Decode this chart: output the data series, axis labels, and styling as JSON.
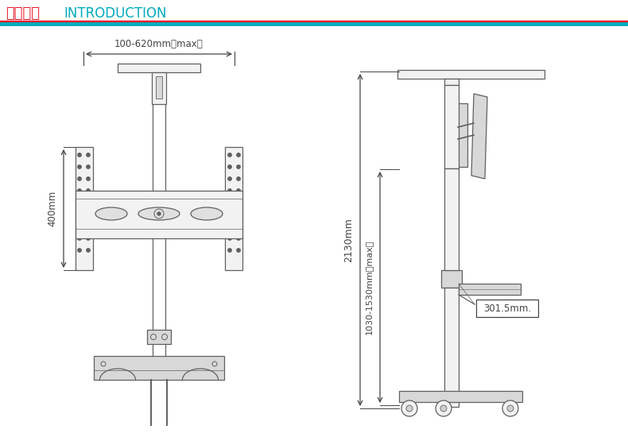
{
  "title_chinese": "商品介绍",
  "title_english": "INTRODUCTION",
  "title_color_cn": "#e8192c",
  "title_color_en": "#00aabb",
  "line_color_red": "#e8192c",
  "line_color_cyan": "#00aabb",
  "drawing_color": "#606060",
  "bg_color": "#ffffff",
  "dim_text_color": "#444444",
  "dim_label_width": "100-620mm（max）",
  "dim_label_height_left": "400mm",
  "dim_label_total_h": "2130mm",
  "dim_label_adj_h": "1030-1530mm（max）",
  "dim_label_shelf": "301.5mm.",
  "figsize": [
    7.9,
    5.5
  ],
  "dpi": 100
}
